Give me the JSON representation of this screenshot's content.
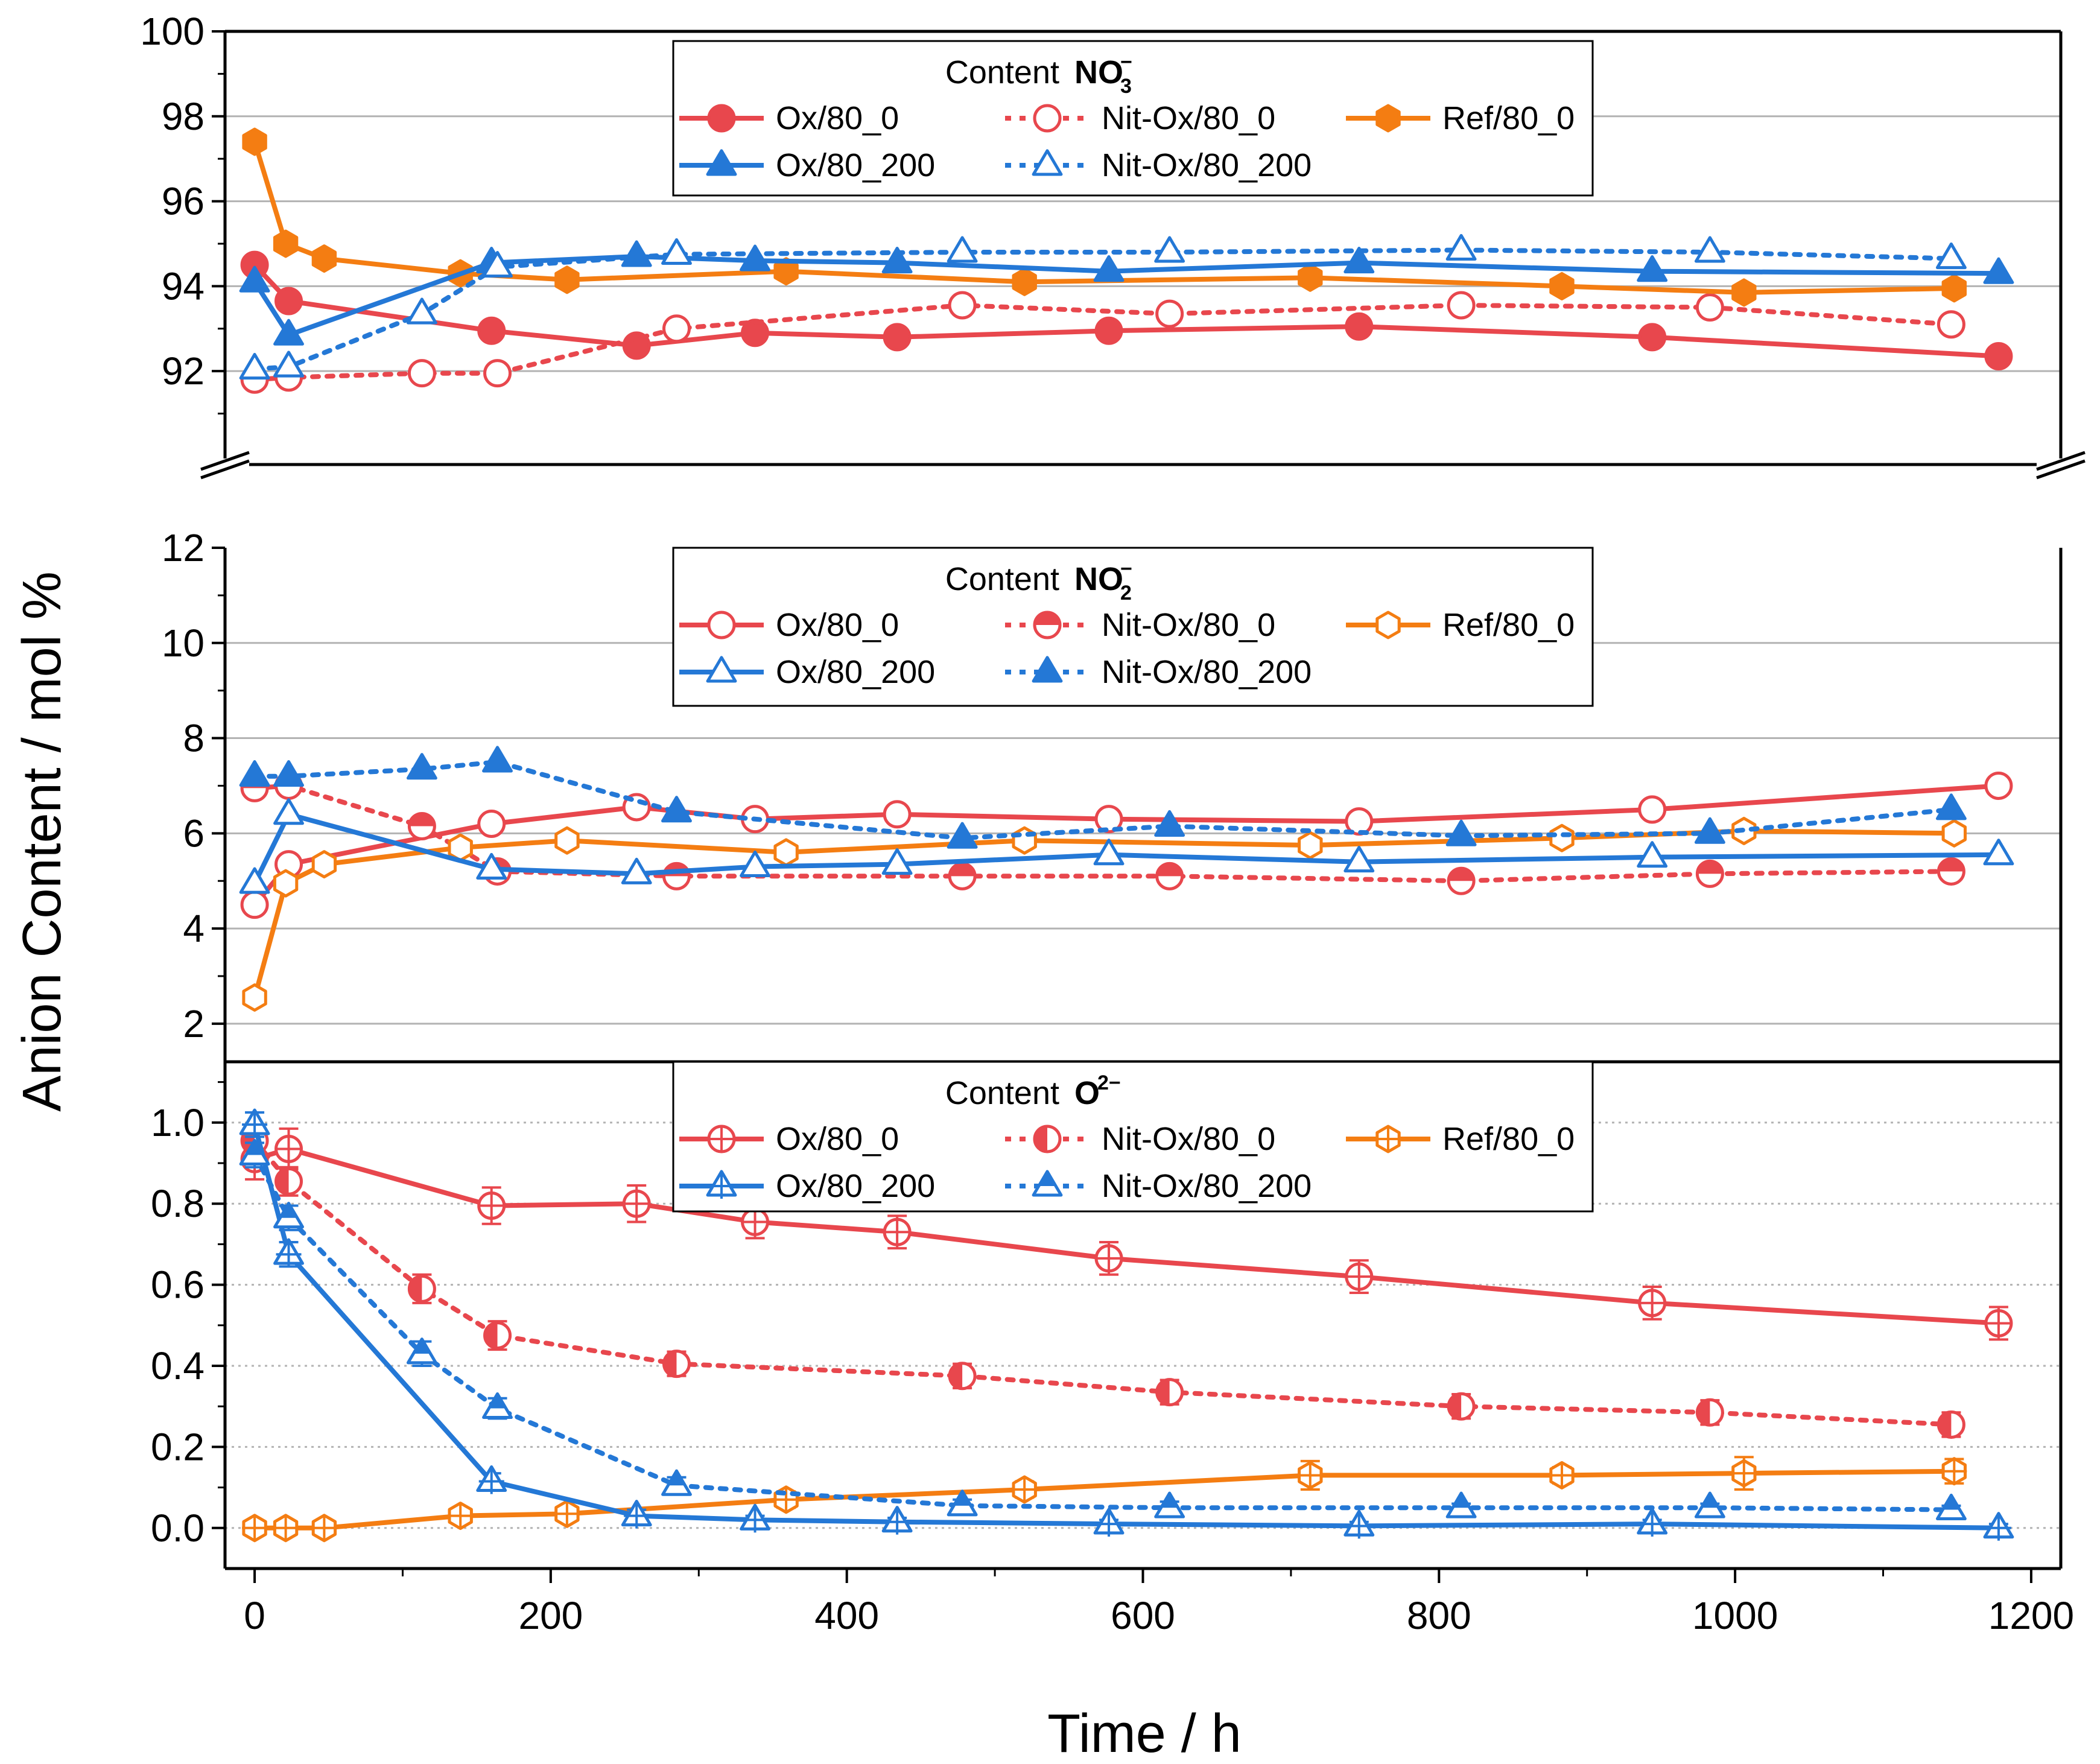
{
  "chart_data": {
    "type": "line",
    "ylabel": "Anion Content / mol %",
    "xlabel": "Time / h",
    "xlim": [
      -20,
      1220
    ],
    "xticks": [
      0,
      200,
      400,
      600,
      800,
      1000,
      1200
    ],
    "xtick_labels": [
      "0",
      "200",
      "400",
      "600",
      "800",
      "1000",
      "1200"
    ],
    "colors": {
      "red": "#e8474d",
      "blue": "#2478d6",
      "orange": "#f47d12",
      "grid": "#b3b3b3"
    },
    "panels": [
      {
        "id": "nitrate",
        "legend_title": "Content",
        "species": "NO",
        "species_sub": "3",
        "species_sup": "−",
        "ylim": [
          89.8,
          100
        ],
        "yticks": [
          92,
          94,
          96,
          98,
          100
        ],
        "ytick_labels": [
          "92",
          "94",
          "96",
          "98",
          "100"
        ],
        "grid": "solid",
        "axis_break": true,
        "series": [
          {
            "name": "Ox/80_0",
            "color": "red",
            "marker": "circle",
            "fill": "full",
            "dash": "solid",
            "x": [
              0,
              23,
              160,
              258,
              338,
              434,
              577,
              746,
              944,
              1178
            ],
            "y": [
              94.5,
              93.65,
              92.95,
              92.6,
              92.9,
              92.8,
              92.95,
              93.05,
              92.8,
              92.35
            ]
          },
          {
            "name": "Nit-Ox/80_0",
            "color": "red",
            "marker": "circle",
            "fill": "open",
            "dash": "dot",
            "x": [
              0,
              23,
              113,
              164,
              285,
              478,
              618,
              815,
              983,
              1146
            ],
            "y": [
              91.8,
              91.85,
              91.95,
              91.95,
              93.0,
              93.55,
              93.35,
              93.55,
              93.5,
              93.1
            ]
          },
          {
            "name": "Ref/80_0",
            "color": "orange",
            "marker": "hexagon",
            "fill": "full",
            "dash": "solid",
            "x": [
              0,
              21,
              47,
              139,
              211,
              359,
              520,
              713,
              883,
              1006,
              1148
            ],
            "y": [
              97.4,
              95.0,
              94.65,
              94.3,
              94.15,
              94.35,
              94.1,
              94.2,
              94.0,
              93.85,
              93.95
            ]
          },
          {
            "name": "Ox/80_200",
            "color": "blue",
            "marker": "triangle",
            "fill": "full",
            "dash": "solid",
            "x": [
              0,
              23,
              160,
              258,
              338,
              434,
              577,
              746,
              944,
              1178
            ],
            "y": [
              94.1,
              92.85,
              94.55,
              94.7,
              94.6,
              94.55,
              94.35,
              94.55,
              94.35,
              94.3
            ]
          },
          {
            "name": "Nit-Ox/80_200",
            "color": "blue",
            "marker": "triangle",
            "fill": "open",
            "dash": "dot",
            "x": [
              0,
              23,
              113,
              164,
              285,
              478,
              618,
              815,
              983,
              1146
            ],
            "y": [
              92.05,
              92.1,
              93.35,
              94.45,
              94.75,
              94.8,
              94.8,
              94.85,
              94.8,
              94.65
            ]
          }
        ]
      },
      {
        "id": "nitrite",
        "legend_title": "Content",
        "species": "NO",
        "species_sub": "2",
        "species_sup": "−",
        "ylim": [
          1.2,
          12
        ],
        "yticks": [
          2,
          4,
          6,
          8,
          10,
          12
        ],
        "ytick_labels": [
          "2",
          "4",
          "6",
          "8",
          "10",
          "12"
        ],
        "grid": "solid",
        "series": [
          {
            "name": "Ox/80_0",
            "color": "red",
            "marker": "circle",
            "fill": "open",
            "dash": "solid",
            "x": [
              0,
              23,
              160,
              258,
              338,
              434,
              577,
              746,
              944,
              1178
            ],
            "y": [
              4.5,
              5.35,
              6.2,
              6.55,
              6.3,
              6.4,
              6.3,
              6.25,
              6.5,
              7.0
            ]
          },
          {
            "name": "Nit-Ox/80_0",
            "color": "red",
            "marker": "circle",
            "fill": "half",
            "dash": "dot",
            "x": [
              0,
              23,
              113,
              164,
              285,
              478,
              618,
              815,
              983,
              1146
            ],
            "y": [
              6.95,
              7.0,
              6.15,
              5.2,
              5.1,
              5.1,
              5.1,
              5.0,
              5.15,
              5.2
            ]
          },
          {
            "name": "Ref/80_0",
            "color": "orange",
            "marker": "hexagon",
            "fill": "open",
            "dash": "solid",
            "x": [
              0,
              21,
              47,
              139,
              211,
              359,
              520,
              713,
              883,
              1006,
              1148
            ],
            "y": [
              2.55,
              4.95,
              5.35,
              5.7,
              5.85,
              5.6,
              5.85,
              5.75,
              5.9,
              6.05,
              6.0
            ]
          },
          {
            "name": "Ox/80_200",
            "color": "blue",
            "marker": "triangle",
            "fill": "open",
            "dash": "solid",
            "x": [
              0,
              23,
              160,
              258,
              338,
              434,
              577,
              746,
              944,
              1178
            ],
            "y": [
              4.95,
              6.4,
              5.25,
              5.15,
              5.3,
              5.35,
              5.55,
              5.4,
              5.5,
              5.55
            ]
          },
          {
            "name": "Nit-Ox/80_200",
            "color": "blue",
            "marker": "triangle",
            "fill": "full",
            "dash": "dot",
            "x": [
              0,
              23,
              113,
              164,
              285,
              478,
              618,
              815,
              983,
              1146
            ],
            "y": [
              7.2,
              7.2,
              7.35,
              7.5,
              6.45,
              5.9,
              6.15,
              5.95,
              6.0,
              6.5
            ]
          }
        ]
      },
      {
        "id": "oxide",
        "legend_title": "Content",
        "species": "O",
        "species_sub": "",
        "species_sup": "2−",
        "ylim": [
          -0.1,
          1.15
        ],
        "yticks": [
          0.0,
          0.2,
          0.4,
          0.6,
          0.8,
          1.0
        ],
        "ytick_labels": [
          "0.0",
          "0.2",
          "0.4",
          "0.6",
          "0.8",
          "1.0"
        ],
        "grid": "dotted",
        "error_bars": true,
        "series": [
          {
            "name": "Ox/80_0",
            "color": "red",
            "marker": "circle",
            "fill": "cross",
            "dash": "solid",
            "x": [
              0,
              23,
              160,
              258,
              338,
              434,
              577,
              746,
              944,
              1178
            ],
            "y": [
              0.91,
              0.935,
              0.795,
              0.8,
              0.755,
              0.73,
              0.665,
              0.62,
              0.555,
              0.505
            ],
            "err": [
              0.05,
              0.05,
              0.045,
              0.045,
              0.04,
              0.04,
              0.04,
              0.04,
              0.04,
              0.04
            ]
          },
          {
            "name": "Nit-Ox/80_0",
            "color": "red",
            "marker": "circle",
            "fill": "halfvert",
            "dash": "dot",
            "x": [
              0,
              23,
              113,
              164,
              285,
              478,
              618,
              815,
              983,
              1146
            ],
            "y": [
              0.955,
              0.855,
              0.59,
              0.475,
              0.405,
              0.375,
              0.335,
              0.3,
              0.285,
              0.255
            ],
            "err": [
              0.035,
              0.035,
              0.035,
              0.035,
              0.03,
              0.03,
              0.03,
              0.03,
              0.03,
              0.03
            ]
          },
          {
            "name": "Ref/80_0",
            "color": "orange",
            "marker": "hexagon",
            "fill": "cross",
            "dash": "solid",
            "x": [
              0,
              21,
              47,
              139,
              211,
              359,
              520,
              713,
              883,
              1006,
              1148
            ],
            "y": [
              0.0,
              0.0,
              0.0,
              0.03,
              0.035,
              0.07,
              0.095,
              0.13,
              0.13,
              0.135,
              0.14
            ],
            "err": [
              0.01,
              0.01,
              0.01,
              0.015,
              0.015,
              0.02,
              0.02,
              0.035,
              0.02,
              0.04,
              0.03
            ]
          },
          {
            "name": "Ox/80_200",
            "color": "blue",
            "marker": "triangle",
            "fill": "cross",
            "dash": "solid",
            "x": [
              0,
              23,
              160,
              258,
              338,
              434,
              577,
              746,
              944,
              1178
            ],
            "y": [
              0.995,
              0.675,
              0.115,
              0.03,
              0.02,
              0.015,
              0.01,
              0.005,
              0.01,
              0.0
            ],
            "err": [
              0.03,
              0.03,
              0.02,
              0.015,
              0.01,
              0.01,
              0.01,
              0.01,
              0.01,
              0.01
            ]
          },
          {
            "name": "Nit-Ox/80_200",
            "color": "blue",
            "marker": "triangle",
            "fill": "half",
            "dash": "dot",
            "x": [
              0,
              23,
              113,
              164,
              285,
              478,
              618,
              815,
              983,
              1146
            ],
            "y": [
              0.92,
              0.765,
              0.43,
              0.295,
              0.105,
              0.055,
              0.05,
              0.05,
              0.05,
              0.045
            ],
            "err": [
              0.03,
              0.03,
              0.03,
              0.025,
              0.02,
              0.015,
              0.015,
              0.01,
              0.01,
              0.01
            ]
          }
        ]
      }
    ]
  }
}
